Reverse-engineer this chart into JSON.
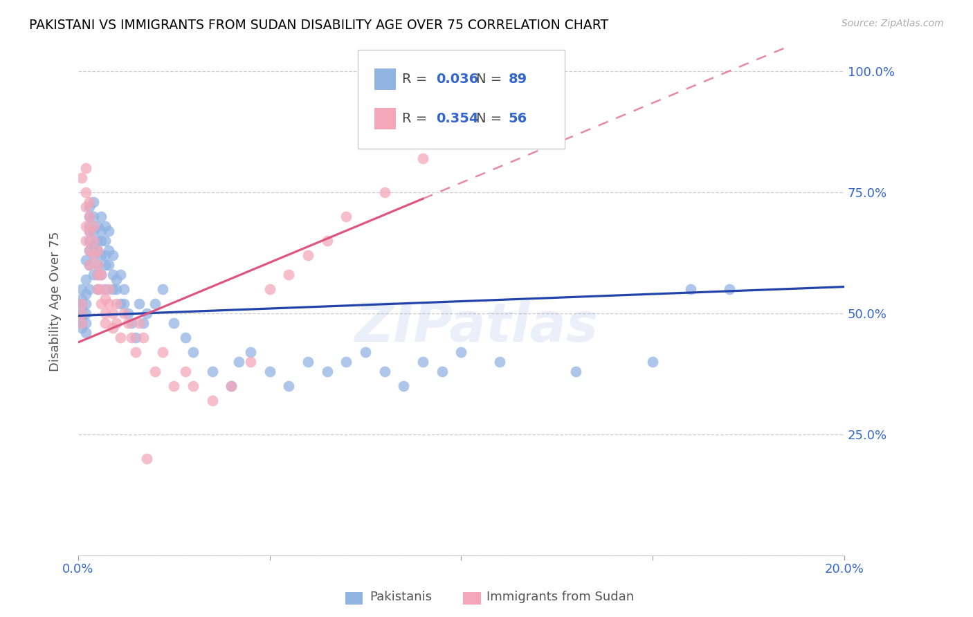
{
  "title": "PAKISTANI VS IMMIGRANTS FROM SUDAN DISABILITY AGE OVER 75 CORRELATION CHART",
  "source": "Source: ZipAtlas.com",
  "ylabel_label": "Disability Age Over 75",
  "x_min": 0.0,
  "x_max": 0.2,
  "y_min": 0.0,
  "y_max": 1.05,
  "x_ticks": [
    0.0,
    0.05,
    0.1,
    0.15,
    0.2
  ],
  "x_tick_labels": [
    "0.0%",
    "",
    "",
    "",
    "20.0%"
  ],
  "y_ticks": [
    0.0,
    0.25,
    0.5,
    0.75,
    1.0
  ],
  "y_tick_labels": [
    "",
    "25.0%",
    "50.0%",
    "75.0%",
    "100.0%"
  ],
  "pakistani_R": 0.036,
  "pakistani_N": 89,
  "sudan_R": 0.354,
  "sudan_N": 56,
  "pakistani_color": "#92b4e3",
  "sudan_color": "#f4a7b9",
  "pakistani_line_color": "#2244aa",
  "sudan_line_color": "#e05580",
  "watermark": "ZIPatlas",
  "pakistani_x": [
    0.001,
    0.001,
    0.001,
    0.001,
    0.001,
    0.001,
    0.001,
    0.001,
    0.002,
    0.002,
    0.002,
    0.002,
    0.002,
    0.002,
    0.002,
    0.003,
    0.003,
    0.003,
    0.003,
    0.003,
    0.003,
    0.003,
    0.003,
    0.004,
    0.004,
    0.004,
    0.004,
    0.004,
    0.004,
    0.005,
    0.005,
    0.005,
    0.005,
    0.005,
    0.005,
    0.006,
    0.006,
    0.006,
    0.006,
    0.006,
    0.007,
    0.007,
    0.007,
    0.007,
    0.007,
    0.008,
    0.008,
    0.008,
    0.009,
    0.009,
    0.009,
    0.01,
    0.01,
    0.011,
    0.011,
    0.012,
    0.012,
    0.013,
    0.014,
    0.015,
    0.016,
    0.017,
    0.018,
    0.02,
    0.022,
    0.025,
    0.028,
    0.03,
    0.035,
    0.04,
    0.042,
    0.045,
    0.05,
    0.055,
    0.06,
    0.065,
    0.07,
    0.075,
    0.08,
    0.085,
    0.09,
    0.095,
    0.1,
    0.11,
    0.12,
    0.13,
    0.15,
    0.16,
    0.17
  ],
  "pakistani_y": [
    0.52,
    0.5,
    0.48,
    0.51,
    0.53,
    0.49,
    0.55,
    0.47,
    0.5,
    0.52,
    0.48,
    0.54,
    0.57,
    0.46,
    0.61,
    0.65,
    0.68,
    0.63,
    0.72,
    0.7,
    0.67,
    0.6,
    0.55,
    0.62,
    0.58,
    0.64,
    0.67,
    0.7,
    0.73,
    0.6,
    0.63,
    0.65,
    0.55,
    0.58,
    0.68,
    0.62,
    0.65,
    0.58,
    0.67,
    0.7,
    0.65,
    0.62,
    0.68,
    0.6,
    0.55,
    0.63,
    0.67,
    0.6,
    0.62,
    0.55,
    0.58,
    0.57,
    0.55,
    0.58,
    0.52,
    0.55,
    0.52,
    0.5,
    0.48,
    0.45,
    0.52,
    0.48,
    0.5,
    0.52,
    0.55,
    0.48,
    0.45,
    0.42,
    0.38,
    0.35,
    0.4,
    0.42,
    0.38,
    0.35,
    0.4,
    0.38,
    0.4,
    0.42,
    0.38,
    0.35,
    0.4,
    0.38,
    0.42,
    0.4,
    0.85,
    0.38,
    0.4,
    0.55,
    0.55
  ],
  "sudan_x": [
    0.001,
    0.001,
    0.001,
    0.001,
    0.002,
    0.002,
    0.002,
    0.002,
    0.002,
    0.003,
    0.003,
    0.003,
    0.003,
    0.003,
    0.004,
    0.004,
    0.004,
    0.005,
    0.005,
    0.005,
    0.005,
    0.006,
    0.006,
    0.006,
    0.007,
    0.007,
    0.007,
    0.008,
    0.008,
    0.009,
    0.009,
    0.01,
    0.01,
    0.011,
    0.012,
    0.013,
    0.014,
    0.015,
    0.016,
    0.017,
    0.018,
    0.02,
    0.022,
    0.025,
    0.028,
    0.03,
    0.035,
    0.04,
    0.045,
    0.05,
    0.055,
    0.06,
    0.065,
    0.07,
    0.08,
    0.09
  ],
  "sudan_y": [
    0.52,
    0.5,
    0.48,
    0.78,
    0.75,
    0.72,
    0.68,
    0.65,
    0.8,
    0.73,
    0.7,
    0.67,
    0.63,
    0.6,
    0.65,
    0.62,
    0.68,
    0.58,
    0.55,
    0.6,
    0.63,
    0.55,
    0.52,
    0.58,
    0.5,
    0.53,
    0.48,
    0.52,
    0.55,
    0.5,
    0.47,
    0.52,
    0.48,
    0.45,
    0.5,
    0.48,
    0.45,
    0.42,
    0.48,
    0.45,
    0.2,
    0.38,
    0.42,
    0.35,
    0.38,
    0.35,
    0.32,
    0.35,
    0.4,
    0.55,
    0.58,
    0.62,
    0.65,
    0.7,
    0.75,
    0.82
  ]
}
